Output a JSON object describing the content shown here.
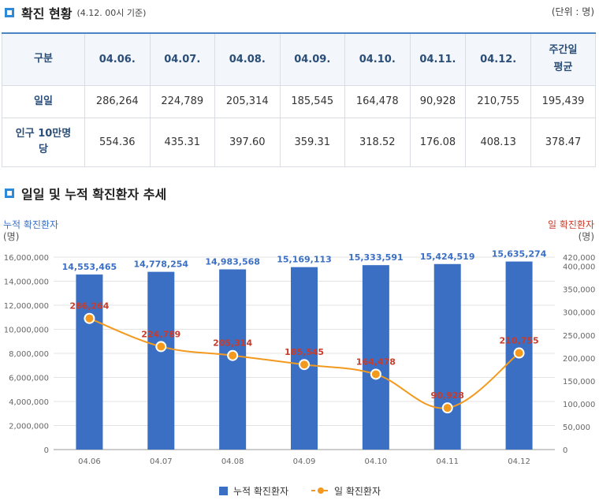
{
  "section1": {
    "title": "확진 현황",
    "subtitle": "(4.12. 00시 기준)",
    "unit": "(단위 : 명)"
  },
  "table": {
    "headers": [
      "구분",
      "04.06.",
      "04.07.",
      "04.08.",
      "04.09.",
      "04.10.",
      "04.11.",
      "04.12.",
      "주간일\n평균"
    ],
    "rows": [
      {
        "label": "일일",
        "values": [
          "286,264",
          "224,789",
          "205,314",
          "185,545",
          "164,478",
          "90,928",
          "210,755",
          "195,439"
        ]
      },
      {
        "label": "인구 10만명당",
        "values": [
          "554.36",
          "435.31",
          "397.60",
          "359.31",
          "318.52",
          "176.08",
          "408.13",
          "378.47"
        ]
      }
    ]
  },
  "section2": {
    "title": "일일 및 누적 확진환자 추세"
  },
  "chart_data": {
    "type": "bar",
    "title": "일일 및 누적 확진환자 추세",
    "left_axis_label": "누적 확진환자",
    "left_axis_unit": "(명)",
    "right_axis_label": "일 확진환자",
    "right_axis_unit": "(명)",
    "categories": [
      "04.06",
      "04.07",
      "04.08",
      "04.09",
      "04.10",
      "04.11",
      "04.12"
    ],
    "series": [
      {
        "name": "누적 확진환자",
        "type": "bar",
        "axis": "left",
        "values": [
          14553465,
          14778254,
          14983568,
          15169113,
          15333591,
          15424519,
          15635274
        ],
        "labels": [
          "14,553,465",
          "14,778,254",
          "14,983,568",
          "15,169,113",
          "15,333,591",
          "15,424,519",
          "15,635,274"
        ]
      },
      {
        "name": "일 확진환자",
        "type": "line",
        "axis": "right",
        "values": [
          286264,
          224789,
          205314,
          185545,
          164478,
          90928,
          210755
        ],
        "labels": [
          "286,264",
          "224,789",
          "205,314",
          "185,545",
          "164,478",
          "90,928",
          "210,755"
        ]
      }
    ],
    "left_ylim": [
      0,
      16000000
    ],
    "left_ticks": [
      "0",
      "2,000,000",
      "4,000,000",
      "6,000,000",
      "8,000,000",
      "10,000,000",
      "12,000,000",
      "14,000,000",
      "16,000,000"
    ],
    "right_ylim": [
      0,
      420000
    ],
    "right_ticks": [
      "0",
      "50,000",
      "100,000",
      "150,000",
      "200,000",
      "250,000",
      "300,000",
      "350,000",
      "400,000",
      "420,000"
    ],
    "legend": [
      "누적 확진환자",
      "일 확진환자"
    ],
    "colors": {
      "bar": "#3a6fc4",
      "line": "#f39a1e",
      "marker": "#f39a1e",
      "left_axis_text": "#3a6fc4",
      "right_axis_text": "#c93b2a"
    }
  }
}
